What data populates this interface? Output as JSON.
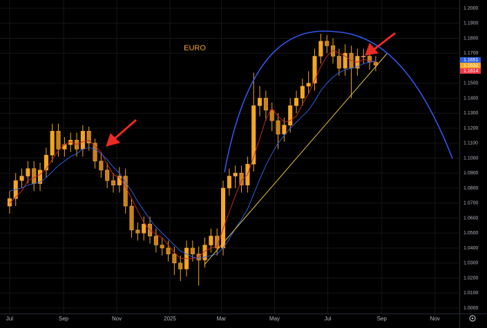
{
  "chart_data": {
    "type": "candlestick",
    "title": "EURO",
    "color": "#f5a623",
    "x": [
      0,
      7,
      14,
      21,
      28,
      35,
      42,
      49,
      56,
      63,
      70,
      77,
      84,
      91,
      98,
      105,
      112,
      119,
      126,
      133,
      140,
      147,
      154,
      161,
      168,
      175,
      182,
      189,
      196,
      203,
      210,
      217,
      224,
      231,
      238,
      245,
      252,
      259,
      266,
      273,
      280,
      287,
      294,
      301,
      308,
      315,
      322,
      329,
      336,
      343,
      350,
      357,
      364,
      371,
      378,
      385,
      392,
      399,
      406,
      413,
      420
    ],
    "open": [
      1.068,
      1.073,
      1.085,
      1.088,
      1.093,
      1.083,
      1.092,
      1.102,
      1.118,
      1.106,
      1.109,
      1.112,
      1.106,
      1.118,
      1.11,
      1.098,
      1.092,
      1.085,
      1.082,
      1.088,
      1.068,
      1.052,
      1.05,
      1.056,
      1.048,
      1.042,
      1.04,
      1.036,
      1.03,
      1.026,
      1.04,
      1.036,
      1.032,
      1.042,
      1.048,
      1.04,
      1.08,
      1.088,
      1.09,
      1.082,
      1.096,
      1.135,
      1.14,
      1.132,
      1.125,
      1.116,
      1.122,
      1.135,
      1.14,
      1.148,
      1.15,
      1.168,
      1.178,
      1.175,
      1.168,
      1.16,
      1.17,
      1.16,
      1.168,
      1.168,
      1.164
    ],
    "high": [
      1.078,
      1.09,
      1.093,
      1.098,
      1.098,
      1.097,
      1.107,
      1.123,
      1.123,
      1.114,
      1.117,
      1.117,
      1.122,
      1.121,
      1.113,
      1.103,
      1.097,
      1.09,
      1.094,
      1.093,
      1.073,
      1.057,
      1.061,
      1.061,
      1.053,
      1.047,
      1.045,
      1.041,
      1.035,
      1.045,
      1.045,
      1.041,
      1.047,
      1.053,
      1.053,
      1.085,
      1.093,
      1.095,
      1.095,
      1.101,
      1.157,
      1.148,
      1.145,
      1.137,
      1.13,
      1.127,
      1.14,
      1.145,
      1.153,
      1.158,
      1.173,
      1.183,
      1.182,
      1.18,
      1.173,
      1.176,
      1.175,
      1.173,
      1.173,
      1.173,
      1.168
    ],
    "low": [
      1.063,
      1.068,
      1.08,
      1.083,
      1.078,
      1.078,
      1.087,
      1.097,
      1.101,
      1.101,
      1.104,
      1.101,
      1.101,
      1.105,
      1.093,
      1.087,
      1.08,
      1.077,
      1.077,
      1.063,
      1.047,
      1.045,
      1.045,
      1.043,
      1.037,
      1.035,
      1.031,
      1.022,
      1.018,
      1.021,
      1.031,
      1.015,
      1.027,
      1.037,
      1.035,
      1.035,
      1.075,
      1.08,
      1.077,
      1.077,
      1.091,
      1.128,
      1.125,
      1.118,
      1.106,
      1.111,
      1.117,
      1.13,
      1.135,
      1.143,
      1.145,
      1.163,
      1.17,
      1.163,
      1.155,
      1.155,
      1.14,
      1.155,
      1.163,
      1.159,
      1.158
    ],
    "close": [
      1.073,
      1.085,
      1.088,
      1.093,
      1.083,
      1.092,
      1.102,
      1.118,
      1.106,
      1.109,
      1.112,
      1.106,
      1.118,
      1.11,
      1.098,
      1.092,
      1.085,
      1.082,
      1.088,
      1.068,
      1.052,
      1.05,
      1.056,
      1.048,
      1.042,
      1.04,
      1.036,
      1.03,
      1.026,
      1.04,
      1.036,
      1.032,
      1.042,
      1.048,
      1.04,
      1.08,
      1.088,
      1.09,
      1.082,
      1.096,
      1.135,
      1.14,
      1.132,
      1.125,
      1.116,
      1.122,
      1.135,
      1.14,
      1.148,
      1.15,
      1.168,
      1.178,
      1.175,
      1.168,
      1.16,
      1.17,
      1.16,
      1.168,
      1.168,
      1.164,
      1.162
    ],
    "overlays": [
      {
        "color": "#c62828",
        "values": [
          1.07,
          1.074,
          1.078,
          1.085,
          1.087,
          1.089,
          1.093,
          1.099,
          1.105,
          1.109,
          1.111,
          1.109,
          1.111,
          1.112,
          1.108,
          1.104,
          1.096,
          1.089,
          1.087,
          1.081,
          1.073,
          1.065,
          1.057,
          1.052,
          1.049,
          1.047,
          1.042,
          1.037,
          1.033,
          1.033,
          1.033,
          1.034,
          1.038,
          1.04,
          1.041,
          1.053,
          1.064,
          1.075,
          1.085,
          1.089,
          1.101,
          1.113,
          1.126,
          1.133,
          1.128,
          1.124,
          1.125,
          1.128,
          1.136,
          1.143,
          1.152,
          1.161,
          1.168,
          1.172,
          1.17,
          1.168,
          1.165,
          1.164,
          1.166,
          1.165,
          1.164
        ]
      },
      {
        "color": "#2f5fe0",
        "values": [
          1.078,
          1.079,
          1.08,
          1.082,
          1.083,
          1.084,
          1.087,
          1.091,
          1.095,
          1.098,
          1.101,
          1.103,
          1.106,
          1.107,
          1.106,
          1.103,
          1.099,
          1.094,
          1.09,
          1.084,
          1.078,
          1.071,
          1.065,
          1.059,
          1.054,
          1.05,
          1.046,
          1.042,
          1.038,
          1.036,
          1.034,
          1.033,
          1.034,
          1.035,
          1.036,
          1.04,
          1.046,
          1.053,
          1.059,
          1.066,
          1.076,
          1.086,
          1.095,
          1.103,
          1.11,
          1.115,
          1.12,
          1.124,
          1.128,
          1.132,
          1.138,
          1.145,
          1.15,
          1.154,
          1.157,
          1.159,
          1.16,
          1.161,
          1.163,
          1.164,
          1.165
        ]
      }
    ],
    "price_labels": [
      {
        "value": 1.1651,
        "label": "1.1651",
        "color": "#2f5fe0"
      },
      {
        "value": 1.1632,
        "label": "1.1632",
        "color": "#f5a623"
      },
      {
        "value": 1.1614,
        "label": "1.1614",
        "color": "#f23645"
      }
    ],
    "xlim": [
      -11,
      516
    ],
    "xticks": [
      {
        "value": 0,
        "label": "Jul"
      },
      {
        "value": 62,
        "label": "Sep"
      },
      {
        "value": 123,
        "label": "Nov"
      },
      {
        "value": 184,
        "label": "2025"
      },
      {
        "value": 243,
        "label": "Mar"
      },
      {
        "value": 304,
        "label": "May"
      },
      {
        "value": 365,
        "label": "Jul"
      },
      {
        "value": 427,
        "label": "Sep"
      },
      {
        "value": 488,
        "label": "Nov"
      }
    ],
    "ylim": [
      0.9963,
      1.2055
    ],
    "yticks": [
      {
        "value": 1.0,
        "label": "1.0000"
      },
      {
        "value": 1.01,
        "label": "1.0100"
      },
      {
        "value": 1.02,
        "label": "1.0200"
      },
      {
        "value": 1.03,
        "label": "1.0300"
      },
      {
        "value": 1.04,
        "label": "1.0400"
      },
      {
        "value": 1.05,
        "label": "1.0500"
      },
      {
        "value": 1.06,
        "label": "1.0600"
      },
      {
        "value": 1.07,
        "label": "1.0700"
      },
      {
        "value": 1.08,
        "label": "1.0800"
      },
      {
        "value": 1.09,
        "label": "1.0900"
      },
      {
        "value": 1.1,
        "label": "1.1000"
      },
      {
        "value": 1.11,
        "label": "1.1100"
      },
      {
        "value": 1.12,
        "label": "1.1200"
      },
      {
        "value": 1.13,
        "label": "1.1300"
      },
      {
        "value": 1.14,
        "label": "1.1400"
      },
      {
        "value": 1.15,
        "label": "1.1500"
      },
      {
        "value": 1.17,
        "label": "1.1700"
      },
      {
        "value": 1.18,
        "label": "1.1800"
      },
      {
        "value": 1.19,
        "label": "1.1900"
      },
      {
        "value": 1.2,
        "label": "1.2000"
      }
    ],
    "grid": true
  }
}
